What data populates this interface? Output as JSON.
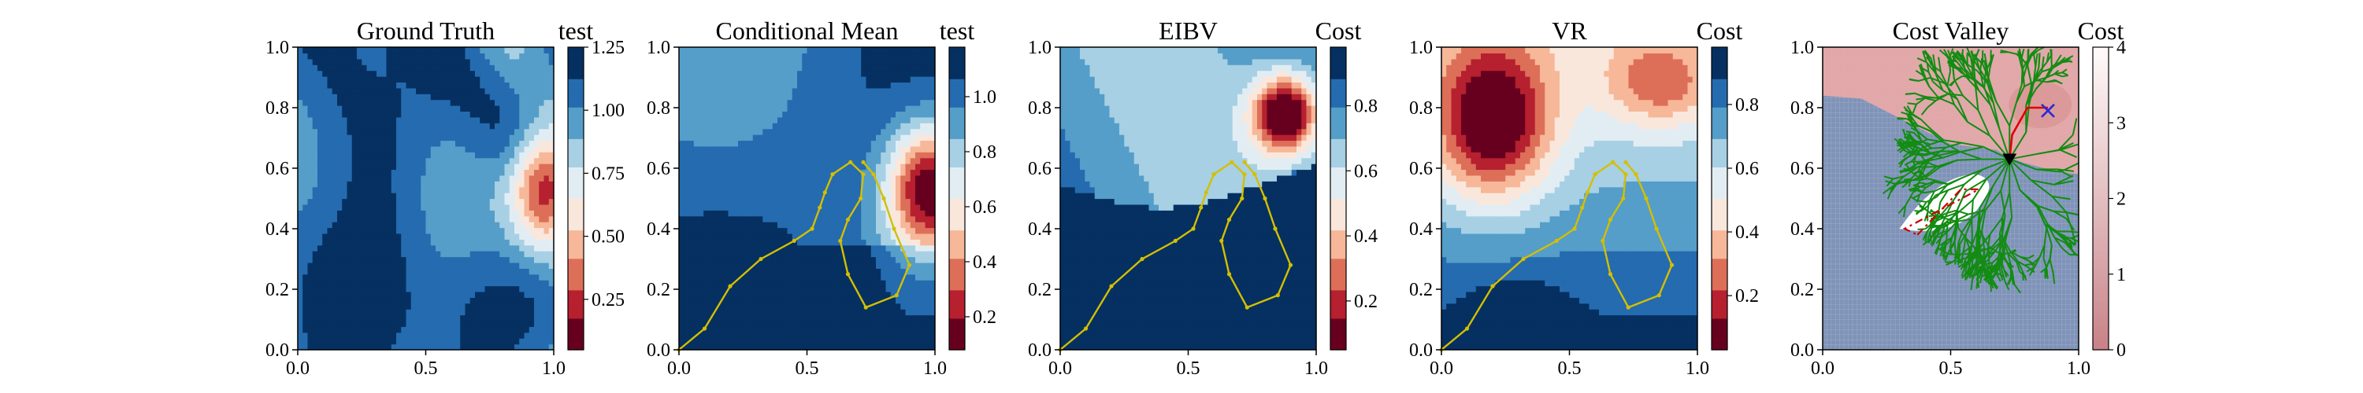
{
  "colors": {
    "rdbu_stops": [
      "#67001f",
      "#b2182b",
      "#d6604d",
      "#f4a582",
      "#fddbc7",
      "#f7f7f7",
      "#d1e5f0",
      "#92c5de",
      "#4393c3",
      "#2166ac",
      "#053061"
    ],
    "path_yellow": "#d4bf00",
    "tree_green": "#138c13",
    "route_red": "#e00000",
    "hull_red": "#cc0000",
    "target_blue": "#2a2ad8",
    "cost_grid_blue": "#7f93b8",
    "cost_pink": "#e7a9a9",
    "cost_white": "#ffffff"
  },
  "chart_data": [
    {
      "type": "heatmap",
      "title": "Ground Truth",
      "colorbar_label": "test",
      "xlim": [
        0.0,
        1.0
      ],
      "ylim": [
        0.0,
        1.0
      ],
      "xticks": [
        "0.0",
        "0.5",
        "1.0"
      ],
      "yticks": [
        "0.0",
        "0.2",
        "0.4",
        "0.6",
        "0.8",
        "1.0"
      ],
      "colorbar_ticks": [
        "0.25",
        "0.50",
        "0.75",
        "1.00",
        "1.25"
      ],
      "colorbar_range": [
        0.05,
        1.25
      ],
      "field_features": {
        "hotspot_center": [
          0.95,
          0.55
        ],
        "hotspot_min": 0.1,
        "background": 1.0
      }
    },
    {
      "type": "heatmap",
      "title": "Conditional Mean",
      "colorbar_label": "test",
      "xlim": [
        0.0,
        1.0
      ],
      "ylim": [
        0.0,
        1.0
      ],
      "xticks": [
        "0.0",
        "0.5",
        "1.0"
      ],
      "yticks": [
        "0.0",
        "0.2",
        "0.4",
        "0.6",
        "0.8",
        "1.0"
      ],
      "colorbar_ticks": [
        "0.2",
        "0.4",
        "0.6",
        "0.8",
        "1.0"
      ],
      "colorbar_range": [
        0.08,
        1.18
      ],
      "field_features": {
        "hotspot_center": [
          0.97,
          0.52
        ],
        "hotspot_min": 0.1,
        "background": 1.0
      },
      "path": [
        [
          0.0,
          0.0
        ],
        [
          0.1,
          0.07
        ],
        [
          0.2,
          0.21
        ],
        [
          0.32,
          0.3
        ],
        [
          0.45,
          0.36
        ],
        [
          0.52,
          0.4
        ],
        [
          0.55,
          0.47
        ],
        [
          0.57,
          0.52
        ],
        [
          0.6,
          0.58
        ],
        [
          0.67,
          0.62
        ],
        [
          0.72,
          0.58
        ],
        [
          0.71,
          0.5
        ],
        [
          0.66,
          0.43
        ],
        [
          0.63,
          0.36
        ],
        [
          0.66,
          0.25
        ],
        [
          0.73,
          0.14
        ],
        [
          0.85,
          0.18
        ],
        [
          0.9,
          0.28
        ],
        [
          0.84,
          0.4
        ],
        [
          0.8,
          0.5
        ],
        [
          0.76,
          0.58
        ],
        [
          0.72,
          0.62
        ]
      ]
    },
    {
      "type": "heatmap",
      "title": "EIBV",
      "colorbar_label": "Cost",
      "xlim": [
        0.0,
        1.0
      ],
      "ylim": [
        0.0,
        1.0
      ],
      "xticks": [
        "0.0",
        "0.5",
        "1.0"
      ],
      "yticks": [
        "0.0",
        "0.2",
        "0.4",
        "0.6",
        "0.8",
        "1.0"
      ],
      "colorbar_ticks": [
        "0.2",
        "0.4",
        "0.6",
        "0.8"
      ],
      "colorbar_range": [
        0.05,
        0.98
      ],
      "field_features": {
        "hotspot_center": [
          0.87,
          0.79
        ],
        "hotspot_min": 0.05
      },
      "path": [
        [
          0.0,
          0.0
        ],
        [
          0.1,
          0.07
        ],
        [
          0.2,
          0.21
        ],
        [
          0.32,
          0.3
        ],
        [
          0.45,
          0.36
        ],
        [
          0.52,
          0.4
        ],
        [
          0.55,
          0.47
        ],
        [
          0.57,
          0.52
        ],
        [
          0.6,
          0.58
        ],
        [
          0.67,
          0.62
        ],
        [
          0.72,
          0.58
        ],
        [
          0.71,
          0.5
        ],
        [
          0.66,
          0.43
        ],
        [
          0.63,
          0.36
        ],
        [
          0.66,
          0.25
        ],
        [
          0.73,
          0.14
        ],
        [
          0.85,
          0.18
        ],
        [
          0.9,
          0.28
        ],
        [
          0.84,
          0.4
        ],
        [
          0.8,
          0.5
        ],
        [
          0.76,
          0.58
        ],
        [
          0.72,
          0.62
        ]
      ]
    },
    {
      "type": "heatmap",
      "title": "VR",
      "colorbar_label": "Cost",
      "xlim": [
        0.0,
        1.0
      ],
      "ylim": [
        0.0,
        1.0
      ],
      "xticks": [
        "0.0",
        "0.5",
        "1.0"
      ],
      "yticks": [
        "0.0",
        "0.2",
        "0.4",
        "0.6",
        "0.8",
        "1.0"
      ],
      "colorbar_ticks": [
        "0.2",
        "0.4",
        "0.6",
        "0.8"
      ],
      "colorbar_range": [
        0.03,
        0.98
      ],
      "field_features": {
        "hotspot_center": [
          0.22,
          0.76
        ],
        "hotspot_min": 0.05
      },
      "path": [
        [
          0.0,
          0.0
        ],
        [
          0.1,
          0.07
        ],
        [
          0.2,
          0.21
        ],
        [
          0.32,
          0.3
        ],
        [
          0.45,
          0.36
        ],
        [
          0.52,
          0.4
        ],
        [
          0.55,
          0.47
        ],
        [
          0.57,
          0.52
        ],
        [
          0.6,
          0.58
        ],
        [
          0.67,
          0.62
        ],
        [
          0.72,
          0.58
        ],
        [
          0.71,
          0.5
        ],
        [
          0.66,
          0.43
        ],
        [
          0.63,
          0.36
        ],
        [
          0.66,
          0.25
        ],
        [
          0.73,
          0.14
        ],
        [
          0.85,
          0.18
        ],
        [
          0.9,
          0.28
        ],
        [
          0.84,
          0.4
        ],
        [
          0.8,
          0.5
        ],
        [
          0.76,
          0.58
        ],
        [
          0.72,
          0.62
        ]
      ]
    },
    {
      "type": "heatmap",
      "title": "Cost Valley",
      "colorbar_label": "Cost",
      "xlim": [
        0.0,
        1.0
      ],
      "ylim": [
        0.0,
        1.0
      ],
      "xticks": [
        "0.0",
        "0.5",
        "1.0"
      ],
      "yticks": [
        "0.0",
        "0.2",
        "0.4",
        "0.6",
        "0.8",
        "1.0"
      ],
      "colorbar_ticks": [
        "0",
        "1",
        "2",
        "3",
        "4"
      ],
      "colorbar_range": [
        0,
        4
      ],
      "current_location": [
        0.73,
        0.63
      ],
      "target_location": [
        0.88,
        0.79
      ],
      "route": [
        [
          0.73,
          0.63
        ],
        [
          0.74,
          0.71
        ],
        [
          0.8,
          0.8
        ],
        [
          0.88,
          0.8
        ]
      ],
      "obstacle_hull": [
        [
          0.37,
          0.38
        ],
        [
          0.54,
          0.53
        ],
        [
          0.61,
          0.53
        ],
        [
          0.32,
          0.4
        ]
      ]
    }
  ]
}
